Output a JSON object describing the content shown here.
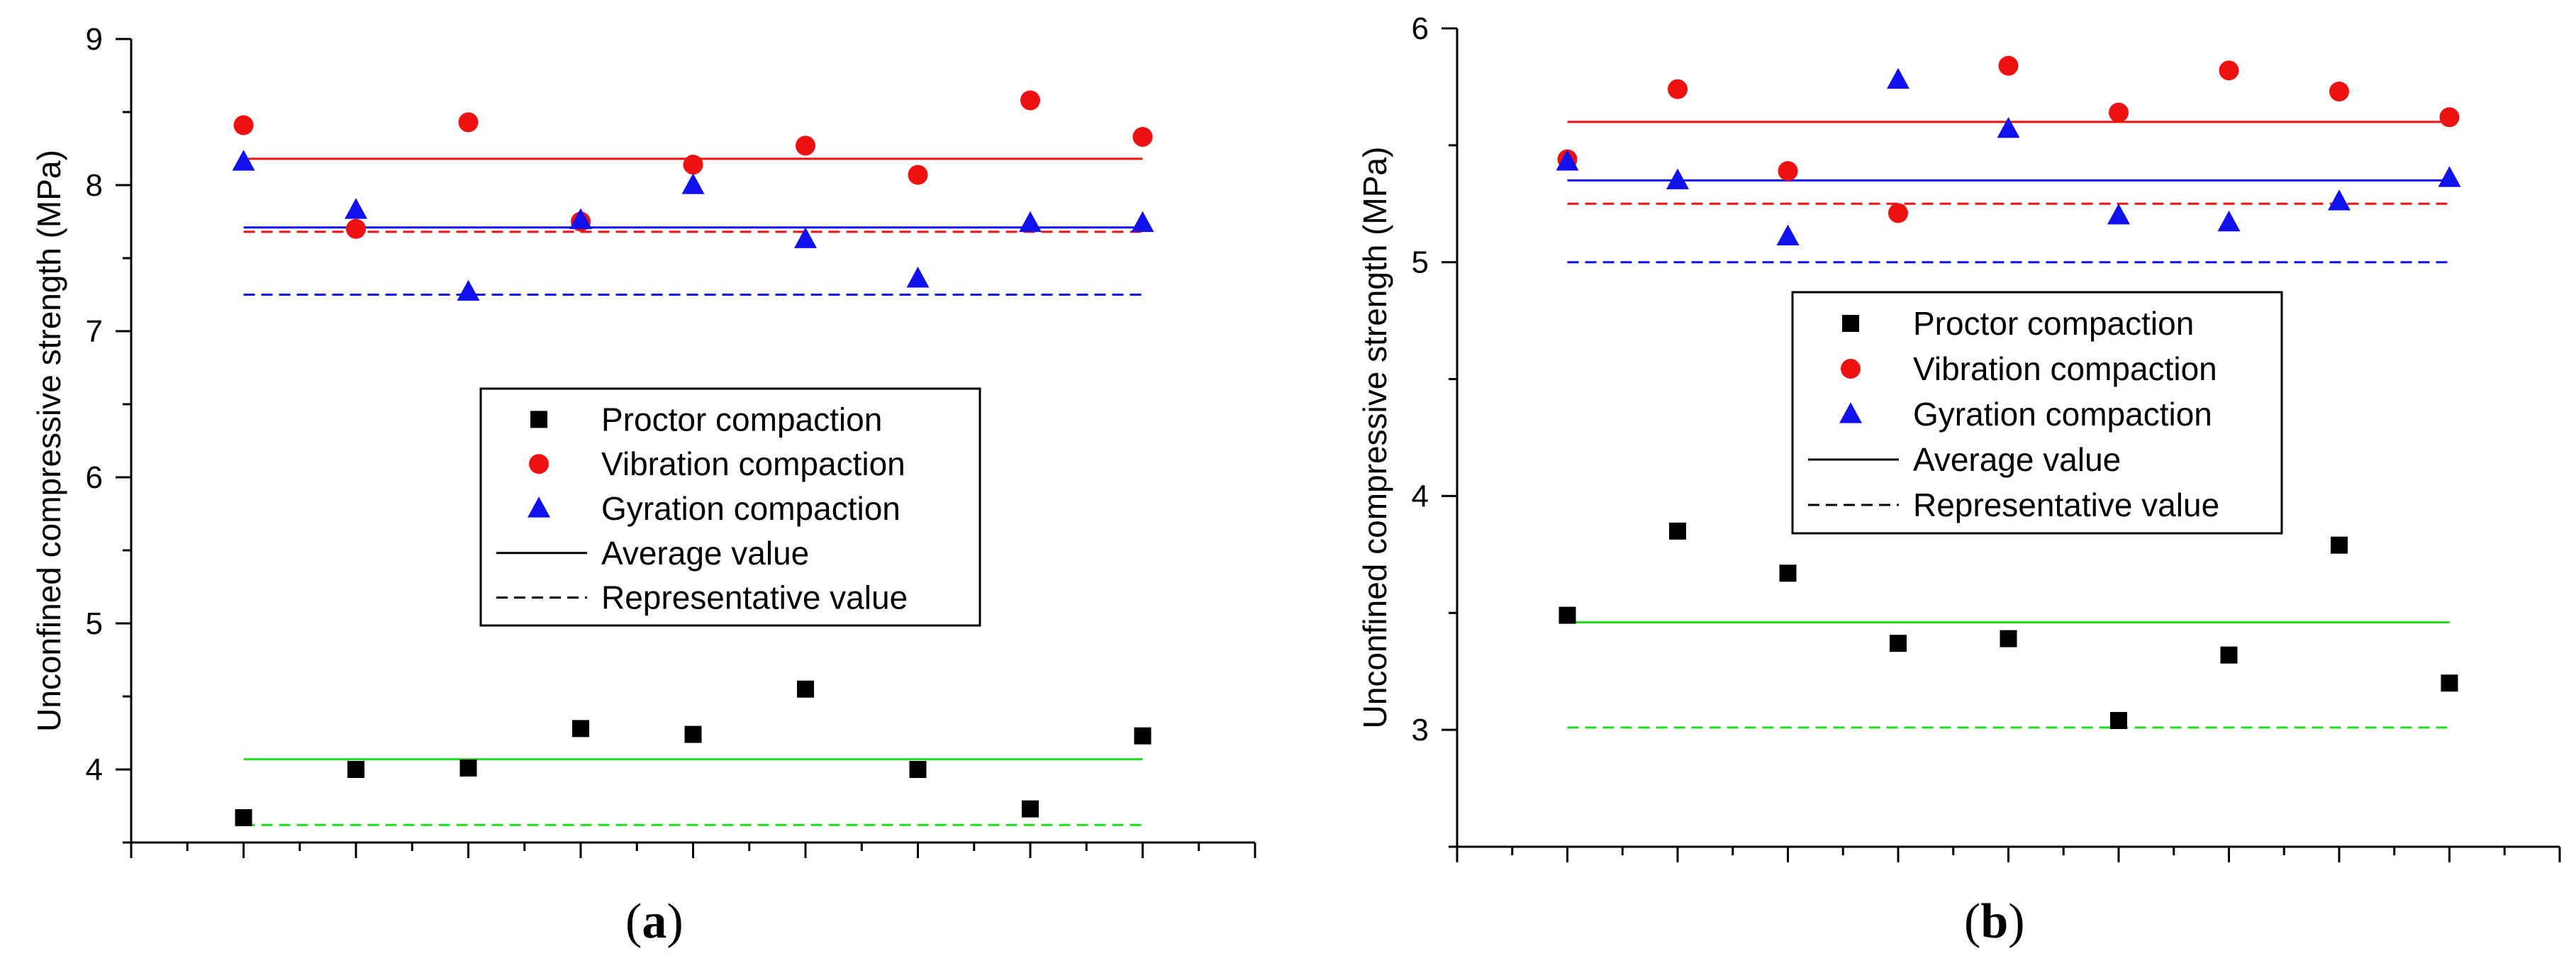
{
  "chart_data": [
    {
      "type": "scatter",
      "panel": "a",
      "panel_label": "a",
      "ylabel": "Unconfined compressive strength (MPa)",
      "ylim": [
        3.5,
        9
      ],
      "yticks": [
        "4",
        "5",
        "6",
        "7",
        "8",
        "9"
      ],
      "yticks_values": [
        4,
        5,
        6,
        7,
        8,
        9
      ],
      "x": [
        1,
        2,
        3,
        4,
        5,
        6,
        7,
        8,
        9
      ],
      "xlim": [
        0,
        10
      ],
      "series": [
        {
          "name": "Proctor compaction",
          "marker": "square",
          "color": "#000000",
          "values": [
            3.67,
            4.0,
            4.01,
            4.28,
            4.24,
            4.55,
            4.0,
            3.73,
            4.23
          ]
        },
        {
          "name": "Vibration compaction",
          "marker": "circle",
          "color": "#ee1111",
          "values": [
            8.41,
            7.7,
            8.43,
            7.75,
            8.14,
            8.27,
            8.07,
            8.58,
            8.33
          ]
        },
        {
          "name": "Gyration compaction",
          "marker": "triangle",
          "color": "#1111ee",
          "values": [
            8.16,
            7.83,
            7.27,
            7.76,
            8.0,
            7.63,
            7.36,
            7.74,
            7.74
          ]
        }
      ],
      "reference_lines": [
        {
          "series": "Proctor compaction",
          "kind": "average",
          "value": 4.07,
          "color": "#22dd22"
        },
        {
          "series": "Proctor compaction",
          "kind": "representative",
          "value": 3.62,
          "color": "#22dd22"
        },
        {
          "series": "Vibration compaction",
          "kind": "average",
          "value": 8.18,
          "color": "#ee1111"
        },
        {
          "series": "Vibration compaction",
          "kind": "representative",
          "value": 7.68,
          "color": "#ee1111"
        },
        {
          "series": "Gyration compaction",
          "kind": "average",
          "value": 7.71,
          "color": "#1111ee"
        },
        {
          "series": "Gyration compaction",
          "kind": "representative",
          "value": 7.25,
          "color": "#1111ee"
        }
      ],
      "legend": {
        "placement": "center",
        "entries": [
          {
            "label": "Proctor compaction",
            "marker": "square",
            "color": "#000000"
          },
          {
            "label": "Vibration compaction",
            "marker": "circle",
            "color": "#ee1111"
          },
          {
            "label": "Gyration compaction",
            "marker": "triangle",
            "color": "#1111ee"
          },
          {
            "label": "Average value",
            "marker": "solid-line",
            "color": "#000000"
          },
          {
            "label": "Representative value",
            "marker": "dashed-line",
            "color": "#000000"
          }
        ]
      }
    },
    {
      "type": "scatter",
      "panel": "b",
      "panel_label": "b",
      "ylabel": "Unconfined compressive strength (MPa)",
      "ylim": [
        2.5,
        6
      ],
      "yticks": [
        "3",
        "4",
        "5",
        "6"
      ],
      "yticks_values": [
        3,
        4,
        5,
        6
      ],
      "x": [
        1,
        2,
        3,
        4,
        5,
        6,
        7,
        8,
        9
      ],
      "xlim": [
        0,
        10
      ],
      "series": [
        {
          "name": "Proctor compaction",
          "marker": "square",
          "color": "#000000",
          "values": [
            3.49,
            3.85,
            3.67,
            3.37,
            3.39,
            3.04,
            3.32,
            3.79,
            3.2
          ]
        },
        {
          "name": "Vibration compaction",
          "marker": "circle",
          "color": "#ee1111",
          "values": [
            5.44,
            5.74,
            5.39,
            5.21,
            5.84,
            5.64,
            5.82,
            5.73,
            5.62
          ]
        },
        {
          "name": "Gyration compaction",
          "marker": "triangle",
          "color": "#1111ee",
          "values": [
            5.43,
            5.35,
            5.11,
            5.78,
            5.57,
            5.2,
            5.17,
            5.26,
            5.36
          ]
        }
      ],
      "reference_lines": [
        {
          "series": "Proctor compaction",
          "kind": "average",
          "value": 3.46,
          "color": "#22dd22"
        },
        {
          "series": "Proctor compaction",
          "kind": "representative",
          "value": 3.01,
          "color": "#22dd22"
        },
        {
          "series": "Vibration compaction",
          "kind": "average",
          "value": 5.6,
          "color": "#ee1111"
        },
        {
          "series": "Vibration compaction",
          "kind": "representative",
          "value": 5.25,
          "color": "#ee1111"
        },
        {
          "series": "Gyration compaction",
          "kind": "average",
          "value": 5.35,
          "color": "#1111ee"
        },
        {
          "series": "Gyration compaction",
          "kind": "representative",
          "value": 5.0,
          "color": "#1111ee"
        }
      ],
      "legend": {
        "placement": "center-top",
        "entries": [
          {
            "label": "Proctor compaction",
            "marker": "square",
            "color": "#000000"
          },
          {
            "label": "Vibration compaction",
            "marker": "circle",
            "color": "#ee1111"
          },
          {
            "label": "Gyration compaction",
            "marker": "triangle",
            "color": "#1111ee"
          },
          {
            "label": "Average value",
            "marker": "solid-line",
            "color": "#000000"
          },
          {
            "label": "Representative value",
            "marker": "dashed-line",
            "color": "#000000"
          }
        ]
      }
    }
  ]
}
